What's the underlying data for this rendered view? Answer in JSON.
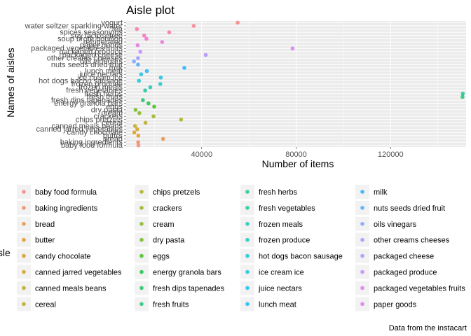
{
  "chart_data": {
    "type": "scatter",
    "title": "Aisle plot",
    "xlabel": "Number of items",
    "ylabel": "Names of aisles",
    "caption": "Data from the instacart",
    "legend_title": "aisle",
    "legend_position": "bottom",
    "grid": true,
    "xlim": [
      8000,
      152000
    ],
    "xticks": [
      40000,
      80000,
      120000
    ],
    "xtick_labels": [
      "40000",
      "80000",
      "120000"
    ],
    "points": [
      {
        "aisle": "baby food formula",
        "count": 13198
      },
      {
        "aisle": "baking ingredients",
        "count": 13088
      },
      {
        "aisle": "bread",
        "count": 23635
      },
      {
        "aisle": "butter",
        "count": 13152
      },
      {
        "aisle": "candy chocolate",
        "count": 11453
      },
      {
        "aisle": "canned jarred vegetables",
        "count": 12679
      },
      {
        "aisle": "canned meals beans",
        "count": 11774
      },
      {
        "aisle": "cereal",
        "count": 16201
      },
      {
        "aisle": "chips pretzels",
        "count": 31269
      },
      {
        "aisle": "crackers",
        "count": 19592
      },
      {
        "aisle": "cream",
        "count": 13602
      },
      {
        "aisle": "dry pasta",
        "count": 11985
      },
      {
        "aisle": "eggs",
        "count": 19875
      },
      {
        "aisle": "energy granola bars",
        "count": 17451
      },
      {
        "aisle": "fresh dips tapenades",
        "count": 15095
      },
      {
        "aisle": "fresh fruits",
        "count": 150473
      },
      {
        "aisle": "fresh herbs",
        "count": 150609
      },
      {
        "aisle": "fresh vegetables",
        "count": 16052
      },
      {
        "aisle": "frozen meals",
        "count": 18221
      },
      {
        "aisle": "frozen produce",
        "count": 22479
      },
      {
        "aisle": "hot dogs bacon sausage",
        "count": 13434
      },
      {
        "aisle": "ice cream ice",
        "count": 22676
      },
      {
        "aisle": "juice nectars",
        "count": 14350
      },
      {
        "aisle": "lunch meat",
        "count": 16752
      },
      {
        "aisle": "milk",
        "count": 32644
      },
      {
        "aisle": "nuts seeds dried fruit",
        "count": 13028
      },
      {
        "aisle": "oils vinegars",
        "count": 11320
      },
      {
        "aisle": "other creams cheeses",
        "count": 13016
      },
      {
        "aisle": "packaged cheese",
        "count": 41699
      },
      {
        "aisle": "packaged produce",
        "count": 13988
      },
      {
        "aisle": "packaged vegetables fruits",
        "count": 78493
      },
      {
        "aisle": "paper goods",
        "count": 12854
      },
      {
        "aisle": "refrigerated",
        "count": 23228
      },
      {
        "aisle": "soup broth bouillon",
        "count": 16583
      },
      {
        "aisle": "soy lactosefree",
        "count": 15637
      },
      {
        "aisle": "spices seasonings",
        "count": 26240
      },
      {
        "aisle": "tea",
        "count": 12538
      },
      {
        "aisle": "water seltzer sparkling water",
        "count": 36617
      },
      {
        "aisle": "yogurt",
        "count": 55240
      }
    ],
    "legend_items": [
      {
        "label": "baby food formula",
        "color": "#F8766D"
      },
      {
        "label": "baking ingredients",
        "color": "#F27D52"
      },
      {
        "label": "bread",
        "color": "#EA842F"
      },
      {
        "label": "butter",
        "color": "#E18A00"
      },
      {
        "label": "candy chocolate",
        "color": "#D69100"
      },
      {
        "label": "canned jarred vegetables",
        "color": "#CB9700"
      },
      {
        "label": "canned meals beans",
        "color": "#BE9C00"
      },
      {
        "label": "cereal",
        "color": "#B0A100"
      },
      {
        "label": "chips pretzels",
        "color": "#A0A600"
      },
      {
        "label": "crackers",
        "color": "#8EAA00"
      },
      {
        "label": "cream",
        "color": "#78AE00"
      },
      {
        "label": "dry pasta",
        "color": "#5DB300"
      },
      {
        "label": "eggs",
        "color": "#2EB600"
      },
      {
        "label": "energy granola bars",
        "color": "#00B92A"
      },
      {
        "label": "fresh dips tapenades",
        "color": "#00BB4E"
      },
      {
        "label": "fresh fruits",
        "color": "#00BD69"
      },
      {
        "label": "fresh herbs",
        "color": "#00BF80"
      },
      {
        "label": "fresh vegetables",
        "color": "#00C094"
      },
      {
        "label": "frozen meals",
        "color": "#00C1A8"
      },
      {
        "label": "frozen produce",
        "color": "#00C0BB"
      },
      {
        "label": "hot dogs bacon sausage",
        "color": "#00BECC"
      },
      {
        "label": "ice cream ice",
        "color": "#00BADC"
      },
      {
        "label": "juice nectars",
        "color": "#00B5EA"
      },
      {
        "label": "lunch meat",
        "color": "#00AFF6"
      },
      {
        "label": "milk",
        "color": "#00A8FF"
      },
      {
        "label": "nuts seeds dried fruit",
        "color": "#359FFF"
      },
      {
        "label": "oils vinegars",
        "color": "#6C96FF"
      },
      {
        "label": "other creams cheeses",
        "color": "#8E8CFF"
      },
      {
        "label": "packaged cheese",
        "color": "#A982FF"
      },
      {
        "label": "packaged produce",
        "color": "#BF78FF"
      },
      {
        "label": "packaged vegetables fruits",
        "color": "#D26DF5"
      },
      {
        "label": "paper goods",
        "color": "#E265E7"
      }
    ],
    "extra_colors": {
      "refrigerated": "#EB60D9",
      "soup broth bouillon": "#F25DC9",
      "soy lactosefree": "#F65EB7",
      "spices seasonings": "#FA62A6",
      "tea": "#FB6794",
      "water seltzer sparkling water": "#FA6E83",
      "yogurt": "#F8766D"
    },
    "colors": {
      "panel": "#EBEBEB",
      "grid_major": "#FFFFFF",
      "legend_key_bg": "#F2F2F2"
    }
  }
}
